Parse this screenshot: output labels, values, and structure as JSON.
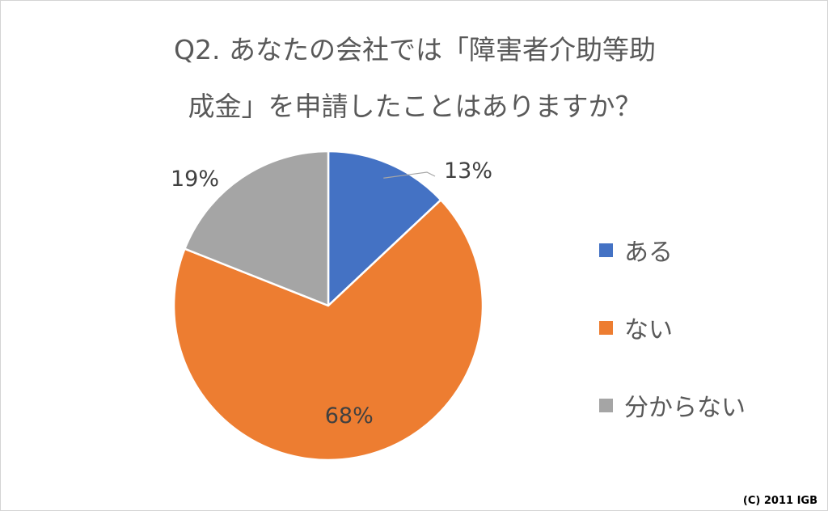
{
  "chart_data": {
    "type": "pie",
    "title_lines": [
      "Q2. あなたの会社では「障害者介助等助",
      "成金」を申請したことはありますか？"
    ],
    "categories": [
      "ある",
      "ない",
      "分からない"
    ],
    "values": [
      13,
      68,
      19
    ],
    "data_labels": [
      "13%",
      "68%",
      "19%"
    ],
    "colors": [
      "#4472c4",
      "#ed7d31",
      "#a5a5a5"
    ],
    "start_angle_deg": 0,
    "direction": "clockwise",
    "legend_position": "right"
  },
  "copyright": "(C) 2011 IGB"
}
